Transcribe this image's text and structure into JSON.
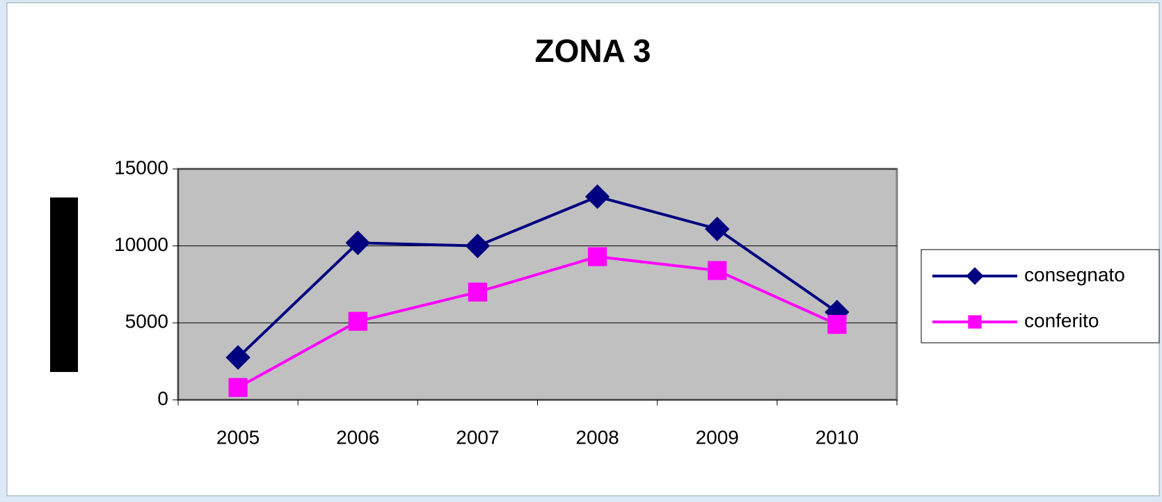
{
  "chart_data": {
    "type": "line",
    "title": "ZONA 3",
    "categories": [
      "2005",
      "2006",
      "2007",
      "2008",
      "2009",
      "2010"
    ],
    "series": [
      {
        "name": "consegnato",
        "color": "#000080",
        "marker": "diamond",
        "values": [
          2750,
          10200,
          10000,
          13200,
          11100,
          5700
        ]
      },
      {
        "name": "conferito",
        "color": "#ff00ff",
        "marker": "square",
        "values": [
          800,
          5100,
          7000,
          9300,
          8400,
          4900
        ]
      }
    ],
    "ylim": [
      0,
      15000
    ],
    "yticks": [
      0,
      5000,
      10000,
      15000
    ],
    "grid": true,
    "legend": "right"
  }
}
